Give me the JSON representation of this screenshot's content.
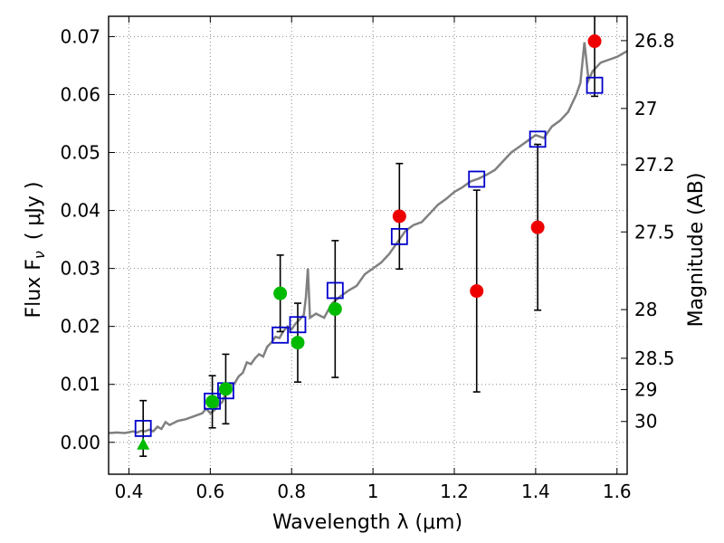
{
  "chart_data": {
    "type": "scatter",
    "xlabel": "Wavelength  λ (μm)",
    "ylabel": "Flux  F",
    "ylabel_sub": "ν",
    "ylabel_unit": "( μJy )",
    "ylabel_right": "Magnitude (AB)",
    "xlim": [
      0.35,
      1.625
    ],
    "ylim": [
      -0.0055,
      0.0735
    ],
    "grid": true,
    "x_ticks": [
      0.4,
      0.6,
      0.8,
      1.0,
      1.2,
      1.4,
      1.6
    ],
    "x_tick_labels": [
      "0.4",
      "0.6",
      "0.8",
      "1",
      "1.2",
      "1.4",
      "1.6"
    ],
    "y_ticks": [
      0.0,
      0.01,
      0.02,
      0.03,
      0.04,
      0.05,
      0.06,
      0.07
    ],
    "y_tick_labels": [
      "0.00",
      "0.01",
      "0.02",
      "0.03",
      "0.04",
      "0.05",
      "0.06",
      "0.07"
    ],
    "right_ticks": [
      {
        "label": "26.8",
        "flux": 0.0693
      },
      {
        "label": "27",
        "flux": 0.0576
      },
      {
        "label": "27.2",
        "flux": 0.0479
      },
      {
        "label": "27.5",
        "flux": 0.0363
      },
      {
        "label": "28",
        "flux": 0.0229
      },
      {
        "label": "28.5",
        "flux": 0.0145
      },
      {
        "label": "29",
        "flux": 0.0091
      },
      {
        "label": "30",
        "flux": 0.0036
      }
    ],
    "colors": {
      "model": "#808080",
      "green": "#00bb00",
      "red": "#ee0000",
      "square": "#0000cc",
      "errorbar": "#000000",
      "grid": "#888888"
    },
    "model_spectrum": [
      [
        0.35,
        0.0016
      ],
      [
        0.37,
        0.0017
      ],
      [
        0.39,
        0.0016
      ],
      [
        0.41,
        0.0019
      ],
      [
        0.42,
        0.0017
      ],
      [
        0.43,
        0.002
      ],
      [
        0.44,
        0.0019
      ],
      [
        0.45,
        0.0022
      ],
      [
        0.46,
        0.0019
      ],
      [
        0.47,
        0.0027
      ],
      [
        0.48,
        0.0023
      ],
      [
        0.49,
        0.0035
      ],
      [
        0.5,
        0.003
      ],
      [
        0.52,
        0.0037
      ],
      [
        0.54,
        0.004
      ],
      [
        0.56,
        0.0045
      ],
      [
        0.58,
        0.005
      ],
      [
        0.59,
        0.0058
      ],
      [
        0.6,
        0.005
      ],
      [
        0.61,
        0.0055
      ],
      [
        0.62,
        0.0063
      ],
      [
        0.63,
        0.007
      ],
      [
        0.64,
        0.0089
      ],
      [
        0.65,
        0.0098
      ],
      [
        0.66,
        0.0102
      ],
      [
        0.67,
        0.0114
      ],
      [
        0.68,
        0.012
      ],
      [
        0.69,
        0.0138
      ],
      [
        0.7,
        0.0135
      ],
      [
        0.71,
        0.0145
      ],
      [
        0.72,
        0.0152
      ],
      [
        0.73,
        0.0148
      ],
      [
        0.74,
        0.0165
      ],
      [
        0.75,
        0.0172
      ],
      [
        0.76,
        0.0182
      ],
      [
        0.77,
        0.018
      ],
      [
        0.78,
        0.0192
      ],
      [
        0.79,
        0.02
      ],
      [
        0.8,
        0.0195
      ],
      [
        0.81,
        0.0205
      ],
      [
        0.82,
        0.0212
      ],
      [
        0.83,
        0.022
      ],
      [
        0.835,
        0.025
      ],
      [
        0.84,
        0.03
      ],
      [
        0.845,
        0.0215
      ],
      [
        0.86,
        0.0222
      ],
      [
        0.88,
        0.0215
      ],
      [
        0.89,
        0.0228
      ],
      [
        0.9,
        0.024
      ],
      [
        0.92,
        0.0252
      ],
      [
        0.94,
        0.0262
      ],
      [
        0.96,
        0.027
      ],
      [
        0.98,
        0.029
      ],
      [
        1.0,
        0.03
      ],
      [
        1.02,
        0.031
      ],
      [
        1.04,
        0.0325
      ],
      [
        1.06,
        0.0345
      ],
      [
        1.08,
        0.0365
      ],
      [
        1.1,
        0.0375
      ],
      [
        1.12,
        0.038
      ],
      [
        1.14,
        0.0395
      ],
      [
        1.16,
        0.041
      ],
      [
        1.18,
        0.042
      ],
      [
        1.2,
        0.0432
      ],
      [
        1.22,
        0.044
      ],
      [
        1.24,
        0.045
      ],
      [
        1.26,
        0.0455
      ],
      [
        1.28,
        0.0462
      ],
      [
        1.3,
        0.047
      ],
      [
        1.32,
        0.0485
      ],
      [
        1.34,
        0.05
      ],
      [
        1.36,
        0.051
      ],
      [
        1.38,
        0.052
      ],
      [
        1.4,
        0.053
      ],
      [
        1.42,
        0.0525
      ],
      [
        1.44,
        0.0545
      ],
      [
        1.46,
        0.0555
      ],
      [
        1.48,
        0.057
      ],
      [
        1.5,
        0.06
      ],
      [
        1.51,
        0.062
      ],
      [
        1.52,
        0.069
      ],
      [
        1.53,
        0.0625
      ],
      [
        1.54,
        0.064
      ],
      [
        1.56,
        0.0655
      ],
      [
        1.58,
        0.066
      ],
      [
        1.6,
        0.0665
      ],
      [
        1.625,
        0.0675
      ]
    ],
    "green_points": [
      {
        "x": 0.605,
        "y": 0.007,
        "err": 0.0045
      },
      {
        "x": 0.638,
        "y": 0.0092,
        "err": 0.006
      },
      {
        "x": 0.772,
        "y": 0.0257,
        "err": 0.0066
      },
      {
        "x": 0.815,
        "y": 0.0172,
        "err": 0.0068
      },
      {
        "x": 0.907,
        "y": 0.023,
        "err": 0.0118
      }
    ],
    "green_upper_limit": {
      "x": 0.435,
      "y": -0.0003
    },
    "red_points": [
      {
        "x": 1.065,
        "y": 0.039,
        "err": 0.0091
      },
      {
        "x": 1.255,
        "y": 0.0261,
        "err": 0.0174
      },
      {
        "x": 1.405,
        "y": 0.0371,
        "err": 0.0143
      },
      {
        "x": 1.545,
        "y": 0.0692,
        "err": 0.0095
      }
    ],
    "model_squares": [
      {
        "x": 0.435,
        "y": 0.0024,
        "err": 0.0048
      },
      {
        "x": 0.605,
        "y": 0.0071
      },
      {
        "x": 0.638,
        "y": 0.0089
      },
      {
        "x": 0.772,
        "y": 0.0185
      },
      {
        "x": 0.815,
        "y": 0.0203
      },
      {
        "x": 0.907,
        "y": 0.0262
      },
      {
        "x": 1.065,
        "y": 0.0355
      },
      {
        "x": 1.255,
        "y": 0.0454
      },
      {
        "x": 1.405,
        "y": 0.0523
      },
      {
        "x": 1.545,
        "y": 0.0616
      }
    ]
  }
}
